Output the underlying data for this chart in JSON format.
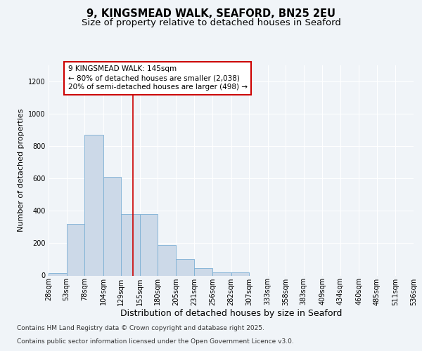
{
  "title1": "9, KINGSMEAD WALK, SEAFORD, BN25 2EU",
  "title2": "Size of property relative to detached houses in Seaford",
  "xlabel": "Distribution of detached houses by size in Seaford",
  "ylabel": "Number of detached properties",
  "footer1": "Contains HM Land Registry data © Crown copyright and database right 2025.",
  "footer2": "Contains public sector information licensed under the Open Government Licence v3.0.",
  "bar_left_edges": [
    28,
    53,
    78,
    104,
    129,
    155,
    180,
    205,
    231,
    256,
    282,
    307,
    333,
    358,
    383,
    409,
    434,
    460,
    485,
    511
  ],
  "bar_widths": [
    25,
    25,
    26,
    25,
    26,
    25,
    25,
    26,
    25,
    26,
    25,
    26,
    25,
    25,
    26,
    25,
    26,
    25,
    26,
    25
  ],
  "bar_heights": [
    15,
    320,
    870,
    610,
    380,
    380,
    190,
    100,
    45,
    20,
    20,
    0,
    0,
    0,
    0,
    0,
    0,
    0,
    0,
    0
  ],
  "bar_color": "#ccd9e8",
  "bar_edge_color": "#7bafd4",
  "vline_x": 145,
  "vline_color": "#cc0000",
  "annotation_text": "9 KINGSMEAD WALK: 145sqm\n← 80% of detached houses are smaller (2,038)\n20% of semi-detached houses are larger (498) →",
  "annotation_box_facecolor": "#ffffff",
  "annotation_box_edgecolor": "#cc0000",
  "ylim": [
    0,
    1300
  ],
  "yticks": [
    0,
    200,
    400,
    600,
    800,
    1000,
    1200
  ],
  "tick_labels": [
    "28sqm",
    "53sqm",
    "78sqm",
    "104sqm",
    "129sqm",
    "155sqm",
    "180sqm",
    "205sqm",
    "231sqm",
    "256sqm",
    "282sqm",
    "307sqm",
    "333sqm",
    "358sqm",
    "383sqm",
    "409sqm",
    "434sqm",
    "460sqm",
    "485sqm",
    "511sqm",
    "536sqm"
  ],
  "bg_color": "#f0f4f8",
  "plot_bg_color": "#f0f4f8",
  "grid_color": "#ffffff",
  "title1_fontsize": 10.5,
  "title2_fontsize": 9.5,
  "xlabel_fontsize": 9,
  "ylabel_fontsize": 8,
  "tick_fontsize": 7,
  "annotation_fontsize": 7.5,
  "footer_fontsize": 6.5
}
